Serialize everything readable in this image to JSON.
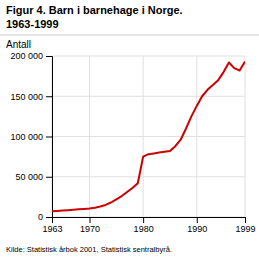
{
  "chart_data": {
    "type": "line",
    "title": "Figur 4. Barn i barnehage i Norge.",
    "subtitle": "1963-1999",
    "ylabel": "Antall",
    "source": "Kilde: Statistisk årbok 2001, Statistisk sentralbyrå.",
    "color": "#cc0000",
    "x": [
      1963,
      1964,
      1965,
      1966,
      1967,
      1968,
      1969,
      1970,
      1971,
      1972,
      1973,
      1974,
      1975,
      1976,
      1977,
      1978,
      1979,
      1980,
      1981,
      1982,
      1983,
      1984,
      1985,
      1986,
      1987,
      1988,
      1989,
      1990,
      1991,
      1992,
      1993,
      1994,
      1995,
      1996,
      1997,
      1998,
      1999
    ],
    "values": [
      7000,
      7500,
      8000,
      8500,
      9000,
      9500,
      10000,
      10500,
      11500,
      13000,
      15000,
      18000,
      22000,
      26000,
      31000,
      36000,
      42000,
      75000,
      78000,
      79000,
      80000,
      81000,
      82000,
      88000,
      96000,
      110000,
      125000,
      138000,
      150000,
      158000,
      164000,
      170000,
      180000,
      192000,
      185000,
      182000,
      193000
    ],
    "xlim": [
      1963,
      1999
    ],
    "ylim": [
      0,
      200000
    ],
    "xticks": [
      1963,
      1970,
      1980,
      1990,
      1999
    ],
    "yticks": [
      0,
      {
        "value": 50000,
        "label": "50 000"
      },
      {
        "value": 100000,
        "label": "100 000"
      },
      {
        "value": 150000,
        "label": "150 000"
      },
      {
        "value": 200000,
        "label": "200 000"
      }
    ],
    "grid": true
  }
}
